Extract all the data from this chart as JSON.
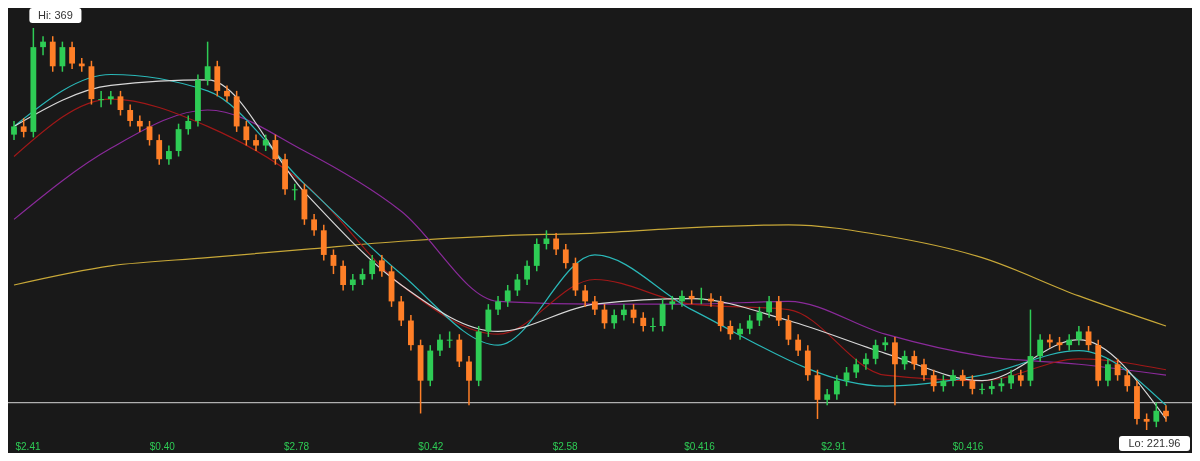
{
  "chart_data": {
    "type": "candlestick",
    "categories": [
      null,
      null,
      null,
      null,
      null,
      null,
      null,
      null,
      null,
      null,
      null,
      null,
      null,
      null,
      null,
      null,
      null,
      null,
      null,
      null,
      null,
      null,
      null,
      null,
      null,
      null,
      null,
      null,
      null,
      null,
      null,
      null,
      null,
      null,
      null,
      null,
      null,
      null,
      null,
      null,
      null,
      null,
      null,
      null,
      null,
      null,
      null,
      null,
      null,
      null,
      null,
      null,
      null,
      null,
      null,
      null,
      null,
      null,
      null,
      null,
      null,
      null,
      null,
      null,
      null,
      null,
      null,
      null,
      null,
      null,
      null,
      null,
      null,
      null,
      null,
      null,
      null,
      null,
      null,
      null,
      null,
      null,
      null,
      null,
      null,
      null,
      null,
      null,
      null,
      null,
      null,
      null,
      null,
      null,
      null,
      null,
      null,
      null,
      null,
      null,
      null,
      null,
      null,
      null,
      null,
      null,
      null,
      null,
      null,
      null,
      null,
      null,
      null,
      null,
      null,
      null,
      null,
      null,
      null,
      null
    ],
    "ohlc": [
      [
        330,
        335,
        328,
        333
      ],
      [
        333,
        336,
        329,
        331
      ],
      [
        331,
        369,
        329,
        362
      ],
      [
        362,
        366,
        359,
        364
      ],
      [
        364,
        366,
        353,
        355
      ],
      [
        355,
        364,
        353,
        362
      ],
      [
        362,
        364,
        354,
        356
      ],
      [
        356,
        358,
        353,
        355
      ],
      [
        355,
        357,
        341,
        343
      ],
      [
        343,
        346,
        340,
        343
      ],
      [
        343,
        346,
        341,
        344
      ],
      [
        344,
        346,
        337,
        339
      ],
      [
        339,
        341,
        333,
        335
      ],
      [
        335,
        337,
        331,
        333
      ],
      [
        333,
        335,
        326,
        328
      ],
      [
        328,
        330,
        319,
        321
      ],
      [
        321,
        326,
        319,
        324
      ],
      [
        324,
        334,
        322,
        332
      ],
      [
        332,
        337,
        330,
        335
      ],
      [
        335,
        352,
        333,
        350
      ],
      [
        350,
        364,
        348,
        355
      ],
      [
        355,
        357,
        344,
        346
      ],
      [
        346,
        348,
        342,
        344
      ],
      [
        344,
        346,
        331,
        333
      ],
      [
        333,
        335,
        326,
        328
      ],
      [
        328,
        330,
        324,
        326
      ],
      [
        326,
        330,
        324,
        328
      ],
      [
        328,
        330,
        319,
        321
      ],
      [
        321,
        323,
        308,
        310
      ],
      [
        310,
        312,
        306,
        310
      ],
      [
        310,
        312,
        297,
        299
      ],
      [
        299,
        301,
        293,
        295
      ],
      [
        295,
        297,
        284,
        286
      ],
      [
        286,
        288,
        279,
        282
      ],
      [
        282,
        284,
        273,
        275
      ],
      [
        275,
        279,
        273,
        277
      ],
      [
        277,
        281,
        275,
        279
      ],
      [
        279,
        286,
        277,
        284
      ],
      [
        284,
        286,
        278,
        280
      ],
      [
        280,
        282,
        267,
        269
      ],
      [
        269,
        271,
        260,
        262
      ],
      [
        262,
        264,
        251,
        253
      ],
      [
        253,
        255,
        228,
        240
      ],
      [
        240,
        253,
        238,
        251
      ],
      [
        251,
        257,
        249,
        255
      ],
      [
        255,
        258,
        252,
        255
      ],
      [
        255,
        257,
        245,
        247
      ],
      [
        247,
        249,
        231,
        240
      ],
      [
        240,
        260,
        238,
        258
      ],
      [
        258,
        268,
        256,
        266
      ],
      [
        266,
        271,
        264,
        269
      ],
      [
        269,
        275,
        267,
        273
      ],
      [
        273,
        279,
        271,
        277
      ],
      [
        277,
        284,
        275,
        282
      ],
      [
        282,
        292,
        280,
        290
      ],
      [
        290,
        295,
        288,
        292
      ],
      [
        292,
        294,
        286,
        288
      ],
      [
        288,
        290,
        281,
        283
      ],
      [
        283,
        285,
        271,
        273
      ],
      [
        273,
        275,
        267,
        269
      ],
      [
        269,
        271,
        264,
        266
      ],
      [
        266,
        268,
        259,
        261
      ],
      [
        261,
        266,
        259,
        264
      ],
      [
        264,
        268,
        262,
        266
      ],
      [
        266,
        268,
        261,
        263
      ],
      [
        263,
        265,
        258,
        260
      ],
      [
        260,
        263,
        258,
        260
      ],
      [
        260,
        270,
        258,
        268
      ],
      [
        268,
        271,
        266,
        269
      ],
      [
        269,
        273,
        267,
        271
      ],
      [
        271,
        273,
        268,
        270
      ],
      [
        270,
        274,
        268,
        270
      ],
      [
        270,
        272,
        267,
        269
      ],
      [
        269,
        271,
        258,
        260
      ],
      [
        260,
        262,
        255,
        257
      ],
      [
        257,
        261,
        255,
        259
      ],
      [
        259,
        264,
        257,
        262
      ],
      [
        262,
        267,
        260,
        265
      ],
      [
        265,
        271,
        263,
        269
      ],
      [
        269,
        271,
        260,
        262
      ],
      [
        262,
        264,
        253,
        255
      ],
      [
        255,
        257,
        249,
        251
      ],
      [
        251,
        253,
        240,
        242
      ],
      [
        242,
        244,
        226,
        233
      ],
      [
        233,
        237,
        231,
        235
      ],
      [
        235,
        242,
        233,
        240
      ],
      [
        240,
        245,
        238,
        243
      ],
      [
        243,
        248,
        241,
        246
      ],
      [
        246,
        250,
        244,
        248
      ],
      [
        248,
        255,
        246,
        253
      ],
      [
        253,
        256,
        251,
        254
      ],
      [
        254,
        256,
        231,
        246
      ],
      [
        246,
        251,
        244,
        249
      ],
      [
        249,
        251,
        244,
        246
      ],
      [
        246,
        248,
        240,
        242
      ],
      [
        242,
        244,
        236,
        238
      ],
      [
        238,
        242,
        236,
        240
      ],
      [
        240,
        244,
        238,
        242
      ],
      [
        242,
        244,
        238,
        240
      ],
      [
        240,
        242,
        235,
        237
      ],
      [
        237,
        239,
        235,
        237
      ],
      [
        237,
        240,
        235,
        238
      ],
      [
        238,
        241,
        236,
        239
      ],
      [
        239,
        244,
        237,
        242
      ],
      [
        242,
        244,
        238,
        240
      ],
      [
        240,
        266,
        238,
        249
      ],
      [
        249,
        257,
        247,
        255
      ],
      [
        255,
        257,
        252,
        254
      ],
      [
        254,
        256,
        251,
        253
      ],
      [
        253,
        257,
        251,
        255
      ],
      [
        255,
        260,
        253,
        258
      ],
      [
        258,
        260,
        251,
        253
      ],
      [
        253,
        255,
        238,
        240
      ],
      [
        240,
        248,
        238,
        246
      ],
      [
        246,
        248,
        240,
        242
      ],
      [
        242,
        244,
        236,
        238
      ],
      [
        238,
        240,
        224,
        226
      ],
      [
        226,
        228,
        221.96,
        225
      ],
      [
        225,
        232,
        223,
        229
      ],
      [
        229,
        231,
        225,
        227
      ]
    ],
    "series": [
      {
        "type": "line",
        "color": "#c8a838",
        "values": [
          275,
          null,
          null,
          null,
          null,
          null,
          null,
          null,
          null,
          null,
          282,
          null,
          null,
          null,
          null,
          null,
          null,
          null,
          null,
          null,
          285,
          null,
          null,
          null,
          null,
          null,
          null,
          null,
          null,
          null,
          288,
          null,
          null,
          null,
          null,
          null,
          null,
          null,
          null,
          null,
          291,
          null,
          null,
          null,
          null,
          null,
          null,
          null,
          null,
          null,
          293,
          null,
          null,
          null,
          null,
          null,
          null,
          null,
          null,
          null,
          294,
          null,
          null,
          null,
          null,
          null,
          null,
          null,
          null,
          null,
          296,
          null,
          null,
          null,
          null,
          null,
          null,
          null,
          null,
          null,
          297,
          null,
          null,
          null,
          null,
          null,
          null,
          null,
          null,
          null,
          293,
          null,
          null,
          null,
          null,
          null,
          null,
          null,
          null,
          null,
          285,
          null,
          null,
          null,
          null,
          null,
          null,
          null,
          null,
          null,
          271,
          null,
          null,
          null,
          null,
          null,
          null,
          null,
          null,
          260
        ]
      },
      {
        "type": "line",
        "color": "#8a2a9a",
        "values": [
          299,
          null,
          null,
          null,
          null,
          null,
          null,
          null,
          null,
          null,
          325,
          null,
          null,
          null,
          null,
          null,
          null,
          null,
          null,
          null,
          339,
          null,
          null,
          null,
          null,
          null,
          null,
          null,
          null,
          null,
          324,
          null,
          null,
          null,
          null,
          null,
          null,
          null,
          null,
          null,
          302,
          null,
          null,
          null,
          null,
          null,
          null,
          null,
          null,
          null,
          269,
          null,
          null,
          null,
          null,
          null,
          null,
          null,
          null,
          null,
          268,
          null,
          null,
          null,
          null,
          null,
          null,
          null,
          null,
          null,
          268,
          null,
          null,
          null,
          null,
          null,
          null,
          null,
          null,
          null,
          269,
          null,
          null,
          null,
          null,
          null,
          null,
          null,
          null,
          null,
          257,
          null,
          null,
          null,
          null,
          null,
          null,
          null,
          null,
          null,
          249,
          null,
          null,
          null,
          null,
          null,
          null,
          null,
          null,
          null,
          246,
          null,
          null,
          null,
          null,
          null,
          null,
          null,
          null,
          242
        ]
      },
      {
        "type": "line",
        "color": "#a01818",
        "values": [
          322,
          null,
          null,
          null,
          null,
          null,
          null,
          null,
          null,
          null,
          343,
          null,
          null,
          null,
          null,
          null,
          null,
          null,
          null,
          null,
          333,
          null,
          null,
          null,
          null,
          null,
          null,
          null,
          null,
          null,
          312,
          null,
          null,
          null,
          null,
          null,
          null,
          null,
          null,
          null,
          275,
          null,
          null,
          null,
          null,
          null,
          null,
          null,
          null,
          null,
          257,
          null,
          null,
          null,
          null,
          null,
          null,
          null,
          null,
          null,
          277,
          null,
          null,
          null,
          null,
          null,
          null,
          null,
          null,
          null,
          268,
          null,
          null,
          null,
          null,
          null,
          null,
          null,
          null,
          null,
          266,
          null,
          null,
          null,
          null,
          null,
          null,
          null,
          null,
          null,
          242,
          null,
          null,
          null,
          null,
          null,
          null,
          null,
          null,
          null,
          240,
          null,
          null,
          null,
          null,
          null,
          null,
          null,
          null,
          null,
          248,
          null,
          null,
          null,
          null,
          null,
          null,
          null,
          null,
          244
        ]
      },
      {
        "type": "line",
        "color": "#2ab8b8",
        "values": [
          333,
          null,
          null,
          null,
          null,
          null,
          null,
          null,
          null,
          null,
          352,
          null,
          null,
          null,
          null,
          null,
          null,
          null,
          null,
          null,
          346,
          null,
          null,
          null,
          null,
          null,
          null,
          null,
          null,
          null,
          312,
          null,
          null,
          null,
          null,
          null,
          null,
          null,
          null,
          null,
          279,
          null,
          null,
          null,
          null,
          null,
          null,
          null,
          null,
          null,
          253,
          null,
          null,
          null,
          null,
          null,
          null,
          null,
          null,
          null,
          286,
          null,
          null,
          null,
          null,
          null,
          null,
          null,
          null,
          null,
          266,
          null,
          null,
          null,
          null,
          null,
          null,
          null,
          null,
          null,
          null,
          null,
          null,
          null,
          null,
          null,
          null,
          null,
          null,
          null,
          238,
          null,
          null,
          null,
          null,
          null,
          null,
          null,
          null,
          null,
          242,
          null,
          null,
          null,
          null,
          null,
          null,
          null,
          null,
          null,
          251,
          null,
          null,
          null,
          null,
          null,
          null,
          null,
          null,
          231
        ]
      },
      {
        "type": "line",
        "color": "#d8d8d8",
        "values": [
          333,
          null,
          null,
          null,
          null,
          null,
          null,
          null,
          null,
          null,
          348,
          null,
          null,
          null,
          null,
          null,
          null,
          null,
          null,
          null,
          350,
          null,
          null,
          null,
          null,
          null,
          null,
          null,
          null,
          null,
          309,
          null,
          null,
          null,
          null,
          null,
          null,
          null,
          null,
          null,
          275,
          null,
          null,
          null,
          null,
          null,
          null,
          null,
          null,
          null,
          258,
          null,
          null,
          null,
          null,
          null,
          null,
          null,
          null,
          null,
          268,
          null,
          null,
          null,
          null,
          null,
          null,
          null,
          null,
          null,
          270,
          null,
          null,
          null,
          null,
          null,
          null,
          null,
          null,
          null,
          262,
          null,
          null,
          null,
          null,
          null,
          null,
          null,
          null,
          null,
          250,
          null,
          null,
          null,
          null,
          null,
          null,
          null,
          null,
          null,
          240,
          null,
          null,
          null,
          null,
          null,
          null,
          null,
          null,
          null,
          255,
          null,
          null,
          null,
          null,
          null,
          null,
          null,
          null,
          226
        ]
      }
    ],
    "ref_lines": [
      {
        "axis": "y",
        "value": 232,
        "color": "#b0b0b0"
      }
    ],
    "annotations": [
      "Hi: 369",
      "Lo: 221.96",
      "$2.41",
      "$0.40",
      "$2.78",
      "$0.42",
      "$2.58",
      "$0.416",
      "$2.91",
      "$0.416"
    ]
  }
}
